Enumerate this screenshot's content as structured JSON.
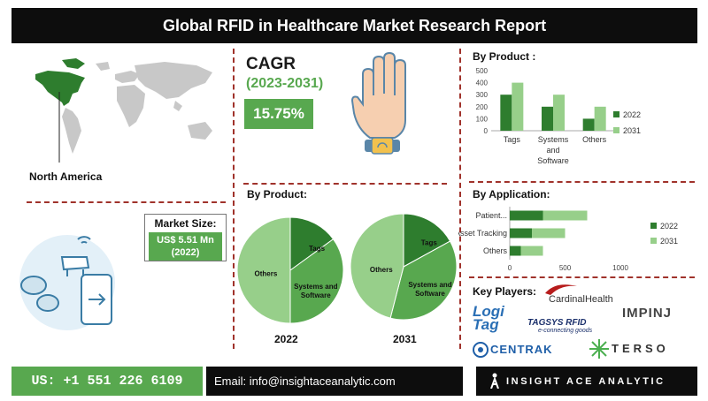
{
  "title": "Global RFID in Healthcare Market Research Report",
  "map": {
    "region_label": "North America"
  },
  "cagr": {
    "label": "CAGR",
    "years": "(2023-2031)",
    "value": "15.75%"
  },
  "market_size": {
    "label": "Market Size:",
    "value": "US$ 5.51 Mn",
    "year": "(2022)"
  },
  "pies": {
    "title": "By Product:",
    "charts": [
      {
        "year": "2022"
      },
      {
        "year": "2031"
      }
    ]
  },
  "key_players": {
    "title": "Key Players:",
    "logos": [
      "Logi Tag",
      "CardinalHealth",
      "IMPINJ",
      "TAGSYS RFID",
      "e-connecting goods",
      "CENTRAK",
      "TERSO"
    ]
  },
  "footer": {
    "phone": "US: +1 551 226 6109",
    "email": "Email: info@insightaceanalytic.com",
    "brand": "INSIGHT ACE ANALYTIC"
  },
  "colors": {
    "dark_green": "#2e7d2e",
    "mid_green": "#58a84f",
    "light_green": "#97cf8a",
    "accent_red": "#a0322b",
    "black": "#0d0d0d"
  },
  "chart_data": [
    {
      "type": "bar",
      "title": "By Product :",
      "categories": [
        "Tags",
        "Systems and Software",
        "Others"
      ],
      "category_lines": [
        [
          "Tags"
        ],
        [
          "Systems",
          "and",
          "Software"
        ],
        [
          "Others"
        ]
      ],
      "series": [
        {
          "name": "2022",
          "values": [
            300,
            200,
            100
          ],
          "color": "#2e7d2e"
        },
        {
          "name": "2031",
          "values": [
            400,
            300,
            200
          ],
          "color": "#97cf8a"
        }
      ],
      "ylim": [
        0,
        500
      ],
      "yticks": [
        0,
        100,
        200,
        300,
        400,
        500
      ],
      "legend": "right",
      "grid": false
    },
    {
      "type": "bar",
      "orientation": "horizontal",
      "stacked": true,
      "title": "By Application:",
      "categories": [
        "Patient...",
        "Asset Tracking",
        "Others"
      ],
      "series": [
        {
          "name": "2022",
          "values": [
            300,
            200,
            100
          ],
          "color": "#2e7d2e"
        },
        {
          "name": "2031",
          "values": [
            400,
            300,
            200
          ],
          "color": "#97cf8a"
        }
      ],
      "xlim": [
        0,
        1000
      ],
      "xticks": [
        0,
        500,
        1000
      ],
      "legend": "right",
      "grid": false
    },
    {
      "type": "pie",
      "year": "2022",
      "categories": [
        "Tags",
        "Systems and Software",
        "Others"
      ],
      "values": [
        15,
        35,
        50
      ],
      "colors": [
        "#2e7d2e",
        "#58a84f",
        "#97cf8a"
      ]
    },
    {
      "type": "pie",
      "year": "2031",
      "categories": [
        "Tags",
        "Systems and Software",
        "Others"
      ],
      "values": [
        17,
        37,
        46
      ],
      "colors": [
        "#2e7d2e",
        "#58a84f",
        "#97cf8a"
      ]
    }
  ]
}
